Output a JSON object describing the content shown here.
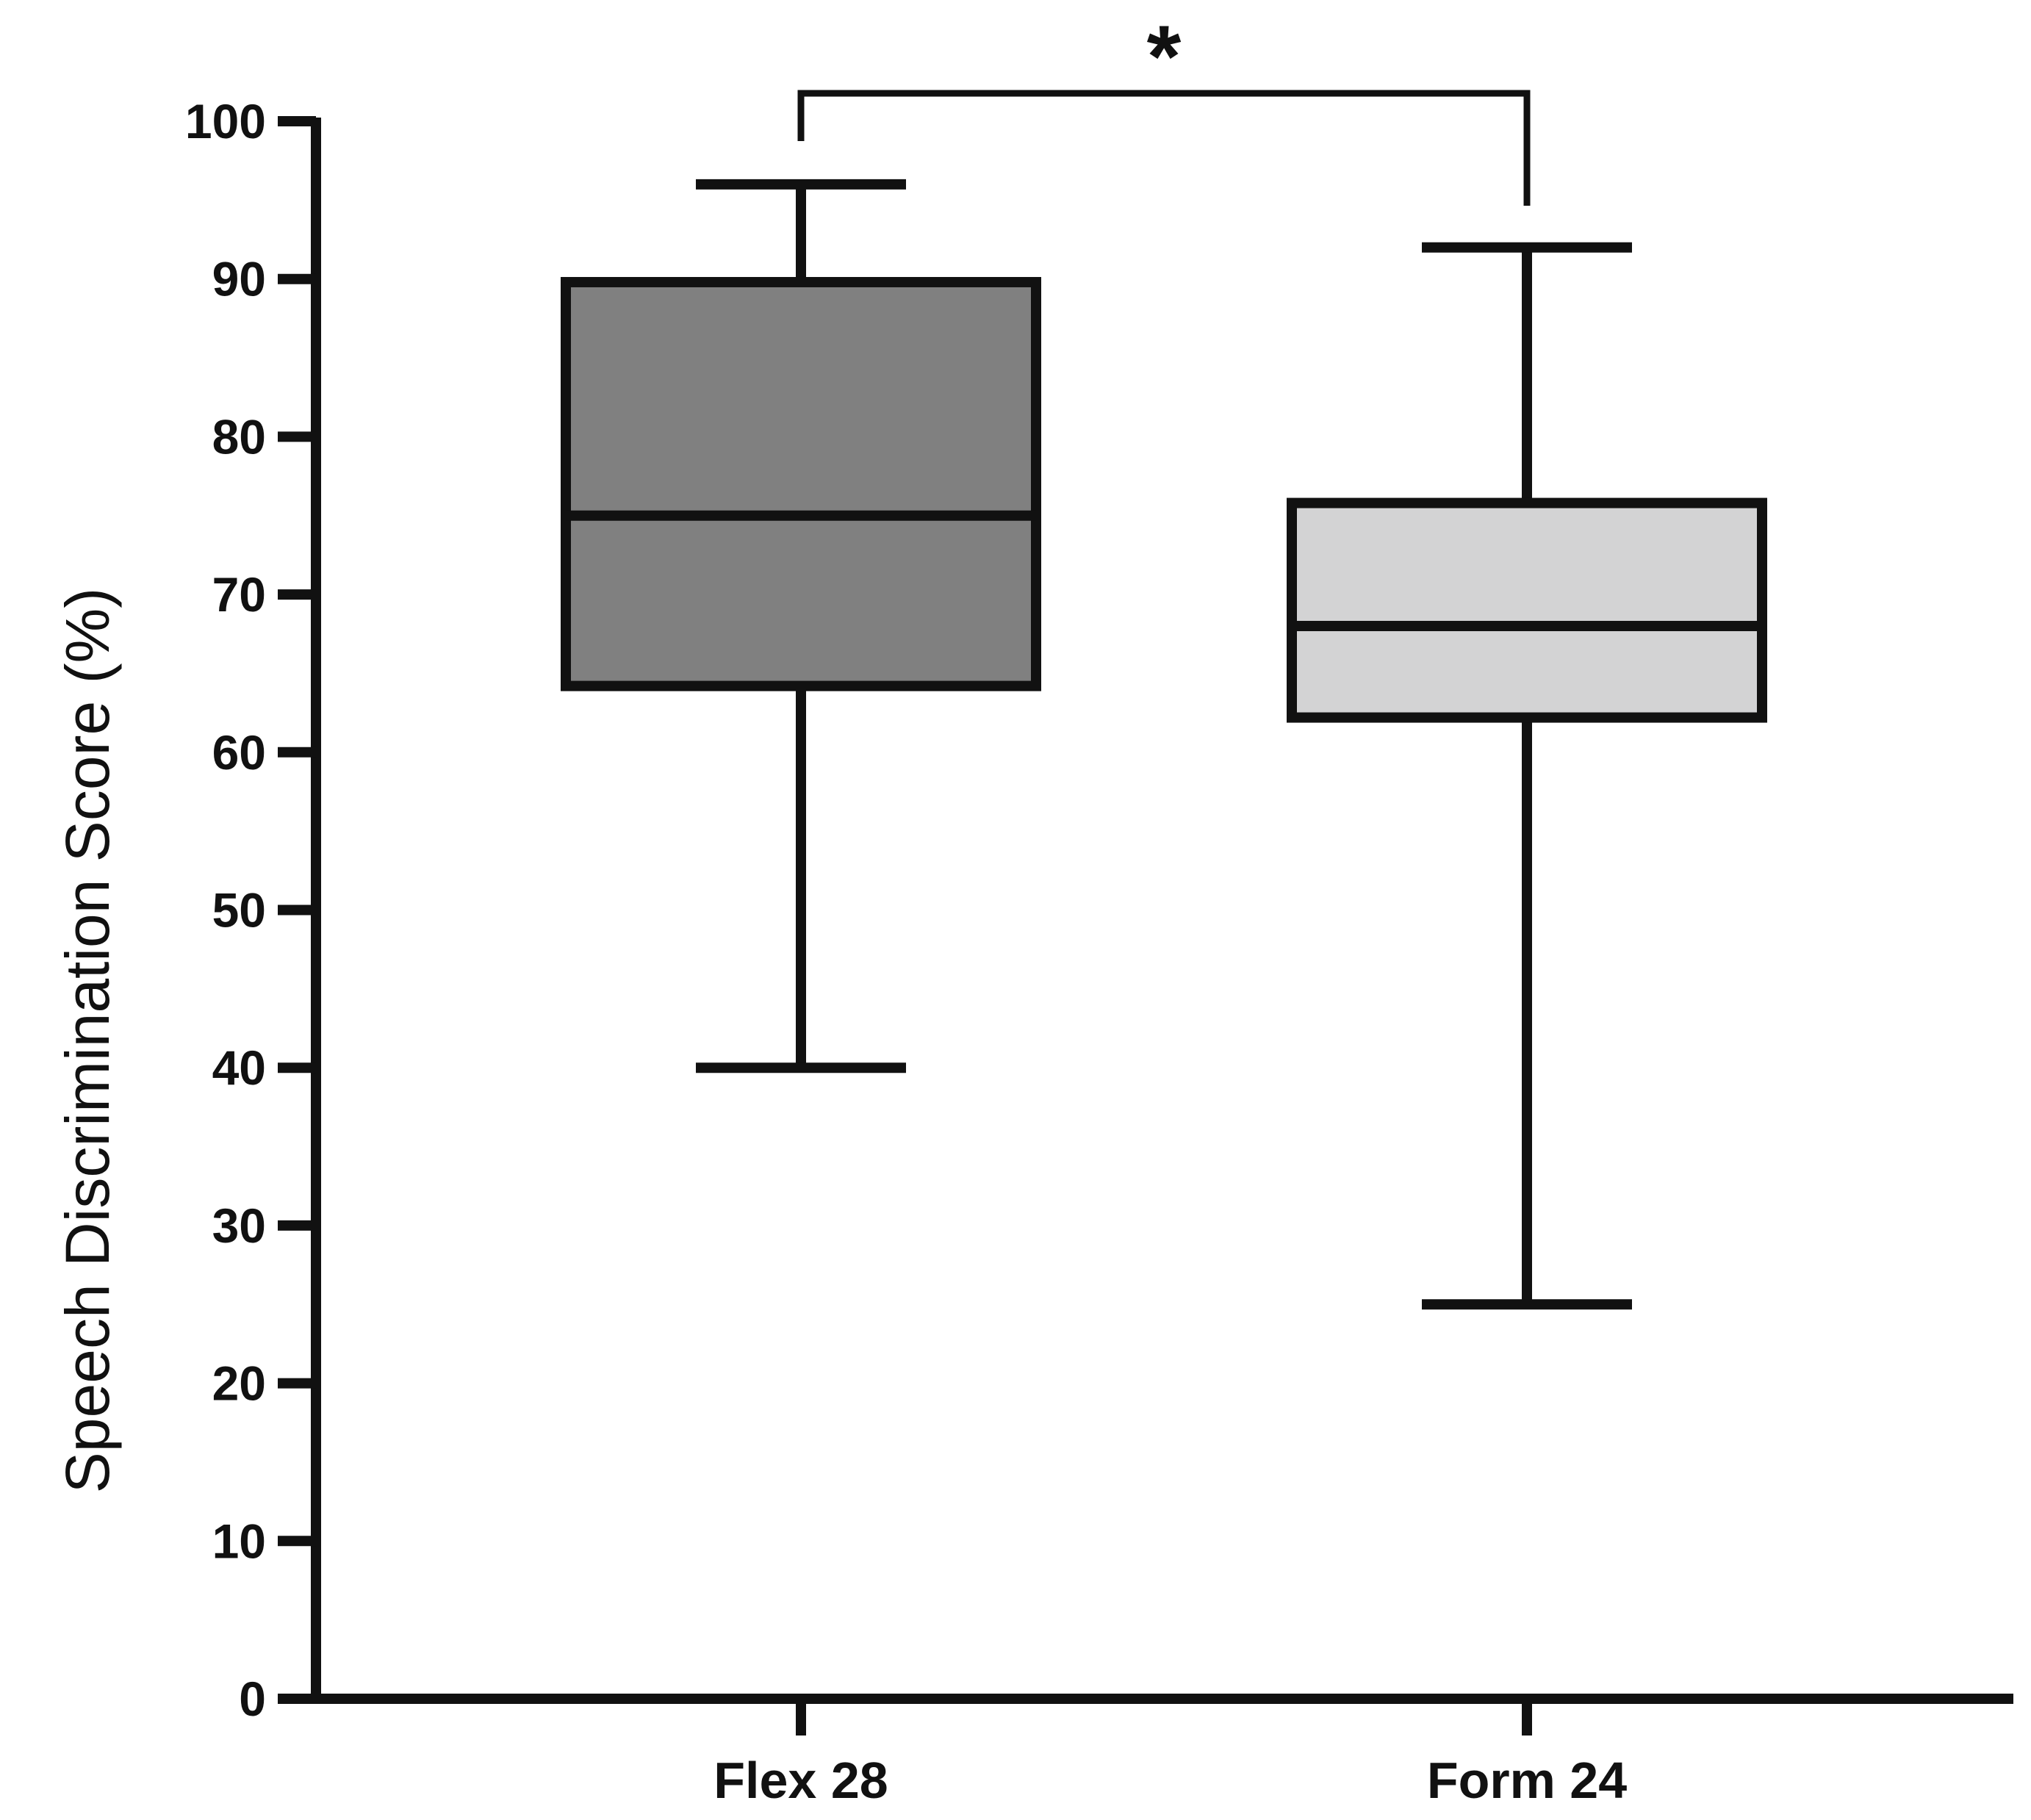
{
  "chart_data": {
    "type": "box",
    "title": "",
    "xlabel": "",
    "ylabel": "Speech Discrimination Score (%)",
    "ylim": [
      0,
      100
    ],
    "yticks": [
      0,
      10,
      20,
      30,
      40,
      50,
      60,
      70,
      80,
      90,
      100
    ],
    "grid": false,
    "legend": "none",
    "categories": [
      "Flex 28",
      "Form 24"
    ],
    "series": [
      {
        "category": "Flex 28",
        "min": 40,
        "q1": 64.2,
        "median": 75,
        "q3": 89.8,
        "max": 96,
        "fill": "#808080"
      },
      {
        "category": "Form 24",
        "min": 25,
        "q1": 62.2,
        "median": 68,
        "q3": 75.8,
        "max": 92,
        "fill": "#d3d3d4"
      }
    ],
    "annotations": [
      {
        "text": "*",
        "between": [
          "Flex 28",
          "Form 24"
        ]
      }
    ],
    "colors": {
      "axis": "#111111",
      "stroke": "#111111"
    }
  }
}
